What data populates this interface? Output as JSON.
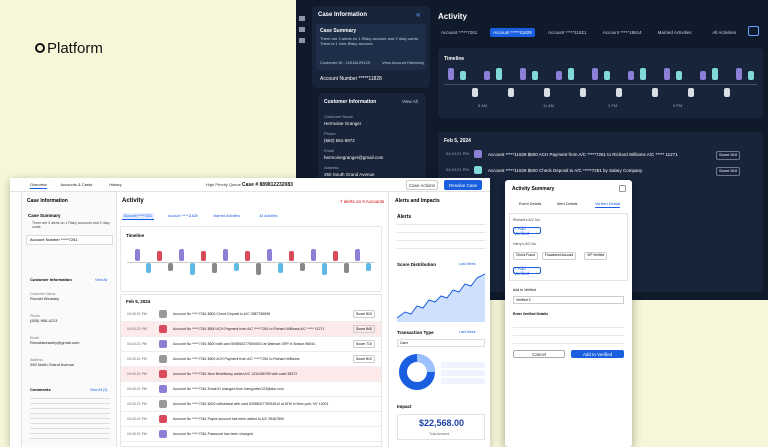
{
  "brand": "Platform",
  "dark": {
    "case_info": "Case Information",
    "summary_title": "Case Summary",
    "summary_text": "There are 3 alerts on 1 Risky account and 2 risky cards. There is 1 Non-Risky account.",
    "customer_id": "Customer ID : 11918129129",
    "hierarchy": "View Account Hierarchy",
    "account": "Account Number *****11828",
    "cust_title": "Customer Information",
    "view_all": "View All",
    "fields": [
      {
        "label": "Customer Name",
        "value": "Hermoine Granger"
      },
      {
        "label": "Phone",
        "value": "(562) 661-6872"
      },
      {
        "label": "Email",
        "value": "hermoinegranger@gmail.com"
      },
      {
        "label": "Address",
        "value": "250 South Grand Avenue"
      }
    ],
    "activity": "Activity",
    "tabs": [
      "Account *****7261",
      "Account *****11828",
      "Account *****11821",
      "Account *****18614",
      "Married Activities",
      "All Activities"
    ],
    "timeline": "Timeline",
    "times": [
      "8 AM",
      "11 AM",
      "2 PM",
      "5 PM"
    ],
    "date": "Feb 5, 2024",
    "rows": [
      {
        "time": "04:43:21 PM",
        "text": "Account *****11828 $500 ACH Payment from A/C *****7261 to Richard Williams A/C ***** 11271",
        "score": "Score 810"
      },
      {
        "time": "04:43:21 PM",
        "text": "Account *****11828 $500 Check Deposit to A/C *****7261 by Salary Company",
        "score": "Score 810"
      }
    ]
  },
  "light": {
    "nav": [
      "Overview",
      "Accounts & Cards",
      "History"
    ],
    "queue": "High Priority Queue",
    "case": "Case # 889812232083",
    "actions": "Case Actions",
    "resolve": "Resolve Case",
    "case_info": "Case Information",
    "summary_title": "Case Summary",
    "summary_text": "There are 3 alerts on 1 Risky accounts and 2 risky cards.",
    "account": "Account Number *****7261",
    "cust_title": "Customer Information",
    "view_all": "View All",
    "fields": [
      {
        "label": "Customer Name",
        "value": "Ronald Weasley"
      },
      {
        "label": "Phone",
        "value": "(555) 966-4213"
      },
      {
        "label": "Email",
        "value": "Ronaldweasley@gmail.com"
      },
      {
        "label": "Address",
        "value": "250 North Grand Avenue"
      }
    ],
    "comments": "Comments",
    "comments_all": "View All (3)",
    "activity": "Activity",
    "alerts_count": "7 alerts on 3 Accounts",
    "tabs": [
      "Account *****7261",
      "Account *****11828",
      "Married Activities",
      "All Activities"
    ],
    "timeline": "Timeline",
    "date": "Feb 5, 2024",
    "rows": [
      {
        "time": "04:43:21 PM",
        "text": "Account No *****7261 $500 Check Deposit to A/C 3987789898",
        "score": "Score 810"
      },
      {
        "time": "04:43:21 PM",
        "text": "Account No *****7261 $500 ACH Payment from A/C *****7261 to Richard Williams A/C ***** 11271",
        "score": "Score 840"
      },
      {
        "time": "04:43:21 PM",
        "text": "Account No *****7261 $500 with card 5098502775094910 at Walmart GRP in Boston 98044",
        "score": "Score 710"
      },
      {
        "time": "04:43:21 PM",
        "text": "Account No *****7261 $500 ACH Payment from A/C *****7261 to Richard Williams",
        "score": "Score 810"
      },
      {
        "time": "04:43:21 PM",
        "text": "Account No *****7261 New Beneficiary added A/C 1234456789 with code 38372",
        "score": ""
      },
      {
        "time": "04:43:21 PM",
        "text": "Account No *****7261 Email ID changed from harrypotter123@abc.com",
        "score": ""
      },
      {
        "time": "04:43:21 PM",
        "text": "Account No *****7261 $400 withdrawal with card 5098502775094910 at ATM in New york, NY 10001",
        "score": ""
      },
      {
        "time": "04:43:21 PM",
        "text": "Account No *****7261 Payee account has been added to A/C 39487890",
        "score": ""
      },
      {
        "time": "04:43:21 PM",
        "text": "Account No *****7261 Password has been changed",
        "score": ""
      }
    ],
    "alerts_title": "Alerts and Impacts",
    "alerts": "Alerts",
    "score_dist": "Score Distribution",
    "last_week": "Last Week",
    "tx_type": "Transaction Type",
    "card": "Card",
    "impact": "Impact",
    "amount": "$22,568.00",
    "amount_label": "Total Amount"
  },
  "modal": {
    "title": "Activity Summary",
    "tabs": [
      "Event Details",
      "Alert Details",
      "Verified Details"
    ],
    "richard": "Richard's A/C No.",
    "add_verified": "+ Add Verified",
    "harry": "Harry's A/C No.",
    "chips": [
      "Check Fraud",
      "Fraudulent Account",
      "VIP Verified"
    ],
    "add_to": "Add to Verified",
    "select": "Verified 2",
    "enter": "Enter Verified Details",
    "cancel": "Cancel",
    "submit": "Add to Verified"
  }
}
